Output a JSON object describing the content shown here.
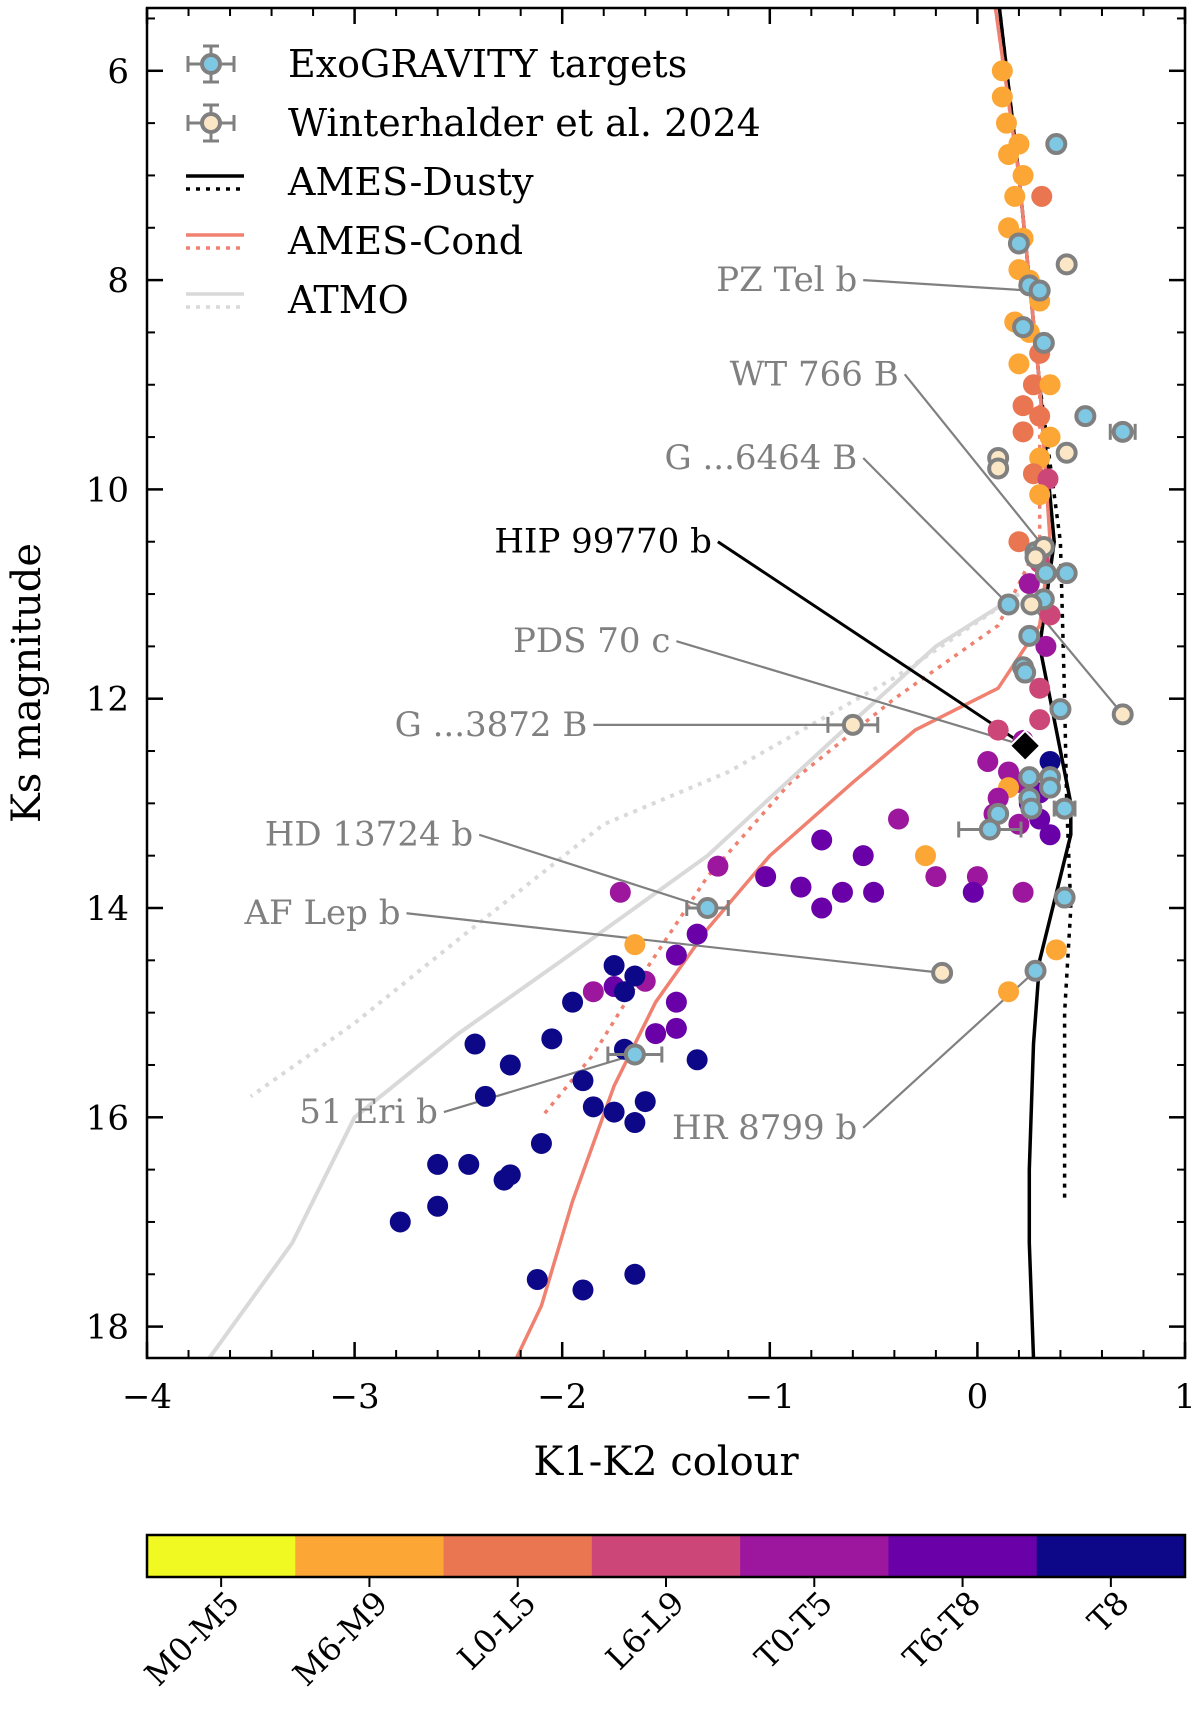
{
  "chart_data": {
    "type": "scatter",
    "xlabel": "K1-K2 colour",
    "ylabel": "Ks magnitude",
    "xlim": [
      -4,
      1
    ],
    "ylim": [
      18.3,
      5.4
    ],
    "xticks": [
      -4,
      -3,
      -2,
      -1,
      0,
      1
    ],
    "xtick_labels": [
      "−4",
      "−3",
      "−2",
      "−1",
      "0",
      "1"
    ],
    "yticks": [
      6,
      8,
      10,
      12,
      14,
      16,
      18
    ],
    "ytick_labels": [
      "6",
      "8",
      "10",
      "12",
      "14",
      "16",
      "18"
    ],
    "legend": {
      "position": "top-left",
      "entries": [
        {
          "label": "ExoGRAVITY targets",
          "kind": "marker",
          "color": "#7ec8e3"
        },
        {
          "label": "Winterhalder et al. 2024",
          "kind": "marker",
          "color": "#fbe7c6"
        },
        {
          "label": "AMES-Dusty",
          "kind": "line",
          "color": "#000000"
        },
        {
          "label": "AMES-Cond",
          "kind": "line",
          "color": "#f08070"
        },
        {
          "label": "ATMO",
          "kind": "line",
          "color": "#d3d3d3"
        }
      ]
    },
    "colorbar": {
      "categories": [
        "M0-M5",
        "M6-M9",
        "L0-L5",
        "L6-L9",
        "T0-T5",
        "T6-T8",
        "T8"
      ],
      "colors": [
        "#f0f921",
        "#fca636",
        "#e97651",
        "#cc4778",
        "#9c179e",
        "#6a00a8",
        "#0d0887"
      ]
    },
    "models": [
      {
        "name": "AMES-Dusty",
        "style": "solid",
        "color": "#000000",
        "points": [
          [
            0.1,
            5.3
          ],
          [
            0.2,
            7
          ],
          [
            0.3,
            9
          ],
          [
            0.37,
            10.5
          ],
          [
            0.3,
            11.5
          ],
          [
            0.35,
            12
          ],
          [
            0.45,
            13
          ],
          [
            0.45,
            13.3
          ],
          [
            0.3,
            14.5
          ],
          [
            0.27,
            15.3
          ],
          [
            0.25,
            16.5
          ],
          [
            0.25,
            17.2
          ],
          [
            0.27,
            18.3
          ]
        ]
      },
      {
        "name": "AMES-Dusty",
        "style": "dotted",
        "color": "#000000",
        "points": [
          [
            0.1,
            5.3
          ],
          [
            0.2,
            7
          ],
          [
            0.3,
            9
          ],
          [
            0.4,
            10.5
          ],
          [
            0.42,
            12
          ],
          [
            0.43,
            13
          ],
          [
            0.45,
            14
          ],
          [
            0.42,
            15
          ],
          [
            0.42,
            16
          ],
          [
            0.42,
            16.8
          ]
        ]
      },
      {
        "name": "AMES-Cond",
        "style": "solid",
        "color": "#f08070",
        "points": [
          [
            0.08,
            5.3
          ],
          [
            0.2,
            7
          ],
          [
            0.3,
            9
          ],
          [
            0.35,
            10.5
          ],
          [
            0.3,
            11.3
          ],
          [
            0.1,
            11.9
          ],
          [
            -0.3,
            12.3
          ],
          [
            -0.6,
            12.8
          ],
          [
            -1.0,
            13.5
          ],
          [
            -1.3,
            14.2
          ],
          [
            -1.55,
            14.9
          ],
          [
            -1.75,
            15.7
          ],
          [
            -1.95,
            16.8
          ],
          [
            -2.1,
            17.8
          ],
          [
            -2.22,
            18.3
          ]
        ]
      },
      {
        "name": "AMES-Cond",
        "style": "dotted",
        "color": "#f08070",
        "points": [
          [
            0.08,
            5.3
          ],
          [
            0.2,
            7
          ],
          [
            0.3,
            9
          ],
          [
            0.3,
            10.5
          ],
          [
            0.1,
            11.3
          ],
          [
            -0.4,
            12.0
          ],
          [
            -0.9,
            12.8
          ],
          [
            -1.3,
            13.7
          ],
          [
            -1.6,
            14.6
          ],
          [
            -1.85,
            15.4
          ],
          [
            -2.1,
            16.0
          ]
        ]
      },
      {
        "name": "ATMO",
        "style": "solid",
        "color": "#d9d9d9",
        "points": [
          [
            0.2,
            11.0
          ],
          [
            -0.2,
            11.5
          ],
          [
            -0.7,
            12.4
          ],
          [
            -1.3,
            13.5
          ],
          [
            -2.0,
            14.5
          ],
          [
            -2.5,
            15.2
          ],
          [
            -3.0,
            16.0
          ],
          [
            -3.3,
            17.2
          ],
          [
            -3.7,
            18.3
          ]
        ]
      },
      {
        "name": "ATMO",
        "style": "dotted",
        "color": "#d9d9d9",
        "points": [
          [
            0.2,
            11.0
          ],
          [
            -0.4,
            11.8
          ],
          [
            -1.2,
            12.7
          ],
          [
            -1.8,
            13.2
          ],
          [
            -2.5,
            14.3
          ],
          [
            -3.0,
            15.1
          ],
          [
            -3.5,
            15.8
          ]
        ]
      }
    ],
    "field_objects": [
      {
        "x": 0.12,
        "y": 6.0,
        "sptype": "M6-M9"
      },
      {
        "x": 0.12,
        "y": 6.25,
        "sptype": "M6-M9"
      },
      {
        "x": 0.14,
        "y": 6.5,
        "sptype": "M6-M9"
      },
      {
        "x": 0.2,
        "y": 6.7,
        "sptype": "M6-M9"
      },
      {
        "x": 0.15,
        "y": 6.8,
        "sptype": "M6-M9"
      },
      {
        "x": 0.22,
        "y": 7.0,
        "sptype": "M6-M9"
      },
      {
        "x": 0.18,
        "y": 7.2,
        "sptype": "M6-M9"
      },
      {
        "x": 0.31,
        "y": 7.2,
        "sptype": "L0-L5"
      },
      {
        "x": 0.15,
        "y": 7.5,
        "sptype": "M6-M9"
      },
      {
        "x": 0.22,
        "y": 7.6,
        "sptype": "M6-M9"
      },
      {
        "x": 0.2,
        "y": 7.9,
        "sptype": "M6-M9"
      },
      {
        "x": 0.25,
        "y": 8.0,
        "sptype": "M6-M9"
      },
      {
        "x": 0.3,
        "y": 8.2,
        "sptype": "M6-M9"
      },
      {
        "x": 0.18,
        "y": 8.4,
        "sptype": "M6-M9"
      },
      {
        "x": 0.25,
        "y": 8.5,
        "sptype": "M6-M9"
      },
      {
        "x": 0.3,
        "y": 8.7,
        "sptype": "L0-L5"
      },
      {
        "x": 0.2,
        "y": 8.8,
        "sptype": "M6-M9"
      },
      {
        "x": 0.27,
        "y": 9.0,
        "sptype": "L0-L5"
      },
      {
        "x": 0.35,
        "y": 9.0,
        "sptype": "M6-M9"
      },
      {
        "x": 0.22,
        "y": 9.2,
        "sptype": "L0-L5"
      },
      {
        "x": 0.3,
        "y": 9.3,
        "sptype": "L0-L5"
      },
      {
        "x": 0.22,
        "y": 9.45,
        "sptype": "L0-L5"
      },
      {
        "x": 0.35,
        "y": 9.5,
        "sptype": "M6-M9"
      },
      {
        "x": 0.3,
        "y": 9.7,
        "sptype": "M6-M9"
      },
      {
        "x": 0.27,
        "y": 9.85,
        "sptype": "L0-L5"
      },
      {
        "x": 0.34,
        "y": 9.9,
        "sptype": "L6-L9"
      },
      {
        "x": 0.3,
        "y": 10.05,
        "sptype": "M6-M9"
      },
      {
        "x": 0.2,
        "y": 10.5,
        "sptype": "L0-L5"
      },
      {
        "x": 0.3,
        "y": 10.7,
        "sptype": "L6-L9"
      },
      {
        "x": 0.25,
        "y": 10.9,
        "sptype": "T0-T5"
      },
      {
        "x": 0.35,
        "y": 11.2,
        "sptype": "L6-L9"
      },
      {
        "x": 0.33,
        "y": 11.5,
        "sptype": "T0-T5"
      },
      {
        "x": 0.22,
        "y": 11.7,
        "sptype": "M6-M9"
      },
      {
        "x": 0.3,
        "y": 11.9,
        "sptype": "L6-L9"
      },
      {
        "x": 0.3,
        "y": 12.2,
        "sptype": "L6-L9"
      },
      {
        "x": 0.1,
        "y": 12.3,
        "sptype": "L6-L9"
      },
      {
        "x": 0.22,
        "y": 12.4,
        "sptype": "T0-T5"
      },
      {
        "x": 0.05,
        "y": 12.6,
        "sptype": "T0-T5"
      },
      {
        "x": 0.35,
        "y": 12.6,
        "sptype": "T8"
      },
      {
        "x": 0.15,
        "y": 12.7,
        "sptype": "T0-T5"
      },
      {
        "x": 0.2,
        "y": 12.8,
        "sptype": "T0-T5"
      },
      {
        "x": 0.15,
        "y": 12.85,
        "sptype": "M6-M9"
      },
      {
        "x": 0.3,
        "y": 12.9,
        "sptype": "T6-T8"
      },
      {
        "x": 0.1,
        "y": 12.95,
        "sptype": "T0-T5"
      },
      {
        "x": 0.25,
        "y": 13.0,
        "sptype": "T6-T8"
      },
      {
        "x": 0.08,
        "y": 13.1,
        "sptype": "T0-T5"
      },
      {
        "x": 0.3,
        "y": 13.15,
        "sptype": "T6-T8"
      },
      {
        "x": 0.2,
        "y": 13.2,
        "sptype": "T0-T5"
      },
      {
        "x": -0.38,
        "y": 13.15,
        "sptype": "T0-T5"
      },
      {
        "x": 0.35,
        "y": 13.3,
        "sptype": "T6-T8"
      },
      {
        "x": -0.75,
        "y": 13.35,
        "sptype": "T6-T8"
      },
      {
        "x": -0.55,
        "y": 13.5,
        "sptype": "T6-T8"
      },
      {
        "x": -0.25,
        "y": 13.5,
        "sptype": "M6-M9"
      },
      {
        "x": -1.25,
        "y": 13.6,
        "sptype": "T0-T5"
      },
      {
        "x": -1.02,
        "y": 13.7,
        "sptype": "T6-T8"
      },
      {
        "x": -0.2,
        "y": 13.7,
        "sptype": "T0-T5"
      },
      {
        "x": 0.0,
        "y": 13.7,
        "sptype": "T0-T5"
      },
      {
        "x": -0.85,
        "y": 13.8,
        "sptype": "T6-T8"
      },
      {
        "x": -0.65,
        "y": 13.85,
        "sptype": "T6-T8"
      },
      {
        "x": -0.5,
        "y": 13.85,
        "sptype": "T6-T8"
      },
      {
        "x": -0.02,
        "y": 13.85,
        "sptype": "T6-T8"
      },
      {
        "x": 0.22,
        "y": 13.85,
        "sptype": "T0-T5"
      },
      {
        "x": -1.72,
        "y": 13.85,
        "sptype": "T0-T5"
      },
      {
        "x": -0.75,
        "y": 14.0,
        "sptype": "T6-T8"
      },
      {
        "x": -1.35,
        "y": 14.25,
        "sptype": "T6-T8"
      },
      {
        "x": -1.45,
        "y": 14.45,
        "sptype": "T6-T8"
      },
      {
        "x": -1.65,
        "y": 14.35,
        "sptype": "M6-M9"
      },
      {
        "x": 0.38,
        "y": 14.4,
        "sptype": "M6-M9"
      },
      {
        "x": -1.6,
        "y": 14.7,
        "sptype": "T0-T5"
      },
      {
        "x": -1.75,
        "y": 14.55,
        "sptype": "T8"
      },
      {
        "x": -1.65,
        "y": 14.65,
        "sptype": "T8"
      },
      {
        "x": -1.75,
        "y": 14.75,
        "sptype": "T6-T8"
      },
      {
        "x": -1.85,
        "y": 14.8,
        "sptype": "T0-T5"
      },
      {
        "x": -1.95,
        "y": 14.9,
        "sptype": "T8"
      },
      {
        "x": -1.7,
        "y": 14.8,
        "sptype": "T8"
      },
      {
        "x": -1.45,
        "y": 14.9,
        "sptype": "T6-T8"
      },
      {
        "x": 0.15,
        "y": 14.8,
        "sptype": "M6-M9"
      },
      {
        "x": -2.05,
        "y": 15.25,
        "sptype": "T8"
      },
      {
        "x": -1.55,
        "y": 15.2,
        "sptype": "T6-T8"
      },
      {
        "x": -1.45,
        "y": 15.15,
        "sptype": "T6-T8"
      },
      {
        "x": -2.42,
        "y": 15.3,
        "sptype": "T8"
      },
      {
        "x": -1.35,
        "y": 15.45,
        "sptype": "T8"
      },
      {
        "x": -2.25,
        "y": 15.5,
        "sptype": "T8"
      },
      {
        "x": -1.7,
        "y": 15.35,
        "sptype": "T8"
      },
      {
        "x": -1.9,
        "y": 15.65,
        "sptype": "T8"
      },
      {
        "x": -2.37,
        "y": 15.8,
        "sptype": "T8"
      },
      {
        "x": -1.85,
        "y": 15.9,
        "sptype": "T8"
      },
      {
        "x": -1.6,
        "y": 15.85,
        "sptype": "T8"
      },
      {
        "x": -1.75,
        "y": 15.95,
        "sptype": "T8"
      },
      {
        "x": -1.65,
        "y": 16.05,
        "sptype": "T8"
      },
      {
        "x": -2.1,
        "y": 16.25,
        "sptype": "T8"
      },
      {
        "x": -2.6,
        "y": 16.45,
        "sptype": "T8"
      },
      {
        "x": -2.45,
        "y": 16.45,
        "sptype": "T8"
      },
      {
        "x": -2.25,
        "y": 16.55,
        "sptype": "T8"
      },
      {
        "x": -2.28,
        "y": 16.6,
        "sptype": "T8"
      },
      {
        "x": -2.6,
        "y": 16.85,
        "sptype": "T8"
      },
      {
        "x": -2.78,
        "y": 17.0,
        "sptype": "T8"
      },
      {
        "x": -2.12,
        "y": 17.55,
        "sptype": "T8"
      },
      {
        "x": -1.9,
        "y": 17.65,
        "sptype": "T8"
      },
      {
        "x": -1.65,
        "y": 17.5,
        "sptype": "T8"
      }
    ],
    "exogravity_targets": [
      {
        "x": 0.38,
        "y": 6.7,
        "xerr": 0
      },
      {
        "x": 0.2,
        "y": 7.65,
        "xerr": 0
      },
      {
        "x": 0.25,
        "y": 8.05,
        "xerr": 0
      },
      {
        "x": 0.3,
        "y": 8.1,
        "xerr": 0
      },
      {
        "x": 0.22,
        "y": 8.45,
        "xerr": 0
      },
      {
        "x": 0.32,
        "y": 8.6,
        "xerr": 0
      },
      {
        "x": 0.52,
        "y": 9.3,
        "xerr": 0
      },
      {
        "x": 0.7,
        "y": 9.45,
        "xerr": 0.06
      },
      {
        "x": 0.33,
        "y": 10.8,
        "xerr": 0
      },
      {
        "x": 0.43,
        "y": 10.8,
        "xerr": 0
      },
      {
        "x": 0.28,
        "y": 10.6,
        "xerr": 0
      },
      {
        "x": 0.15,
        "y": 11.1,
        "xerr": 0
      },
      {
        "x": 0.32,
        "y": 11.05,
        "xerr": 0
      },
      {
        "x": 0.25,
        "y": 11.4,
        "xerr": 0
      },
      {
        "x": 0.22,
        "y": 11.7,
        "xerr": 0
      },
      {
        "x": 0.23,
        "y": 11.75,
        "xerr": 0
      },
      {
        "x": 0.4,
        "y": 12.1,
        "xerr": 0
      },
      {
        "x": 0.25,
        "y": 12.75,
        "xerr": 0
      },
      {
        "x": 0.35,
        "y": 12.75,
        "xerr": 0
      },
      {
        "x": 0.25,
        "y": 12.95,
        "xerr": 0
      },
      {
        "x": 0.35,
        "y": 12.85,
        "xerr": 0
      },
      {
        "x": 0.42,
        "y": 13.05,
        "xerr": 0.05
      },
      {
        "x": 0.26,
        "y": 13.05,
        "xerr": 0
      },
      {
        "x": 0.1,
        "y": 13.1,
        "xerr": 0
      },
      {
        "x": 0.06,
        "y": 13.25,
        "xerr": 0.15
      },
      {
        "x": 0.42,
        "y": 13.9,
        "xerr": 0
      },
      {
        "x": 0.28,
        "y": 14.6,
        "xerr": 0
      },
      {
        "x": -1.3,
        "y": 14.0,
        "xerr": 0.1
      },
      {
        "x": -1.65,
        "y": 15.4,
        "xerr": 0.13
      }
    ],
    "winterhalder_2024": [
      {
        "x": 0.43,
        "y": 7.85,
        "xerr": 0
      },
      {
        "x": 0.1,
        "y": 9.7,
        "xerr": 0
      },
      {
        "x": 0.1,
        "y": 9.8,
        "xerr": 0
      },
      {
        "x": 0.43,
        "y": 9.65,
        "xerr": 0
      },
      {
        "x": 0.32,
        "y": 10.55,
        "xerr": 0
      },
      {
        "x": 0.28,
        "y": 10.65,
        "xerr": 0
      },
      {
        "x": 0.26,
        "y": 11.1,
        "xerr": 0
      },
      {
        "x": 0.7,
        "y": 12.15,
        "xerr": 0
      },
      {
        "x": -0.6,
        "y": 12.25,
        "xerr": 0.12
      },
      {
        "x": -0.17,
        "y": 14.62,
        "xerr": 0
      }
    ],
    "highlight": {
      "label": "HIP 99770 b",
      "x": 0.23,
      "y": 12.45
    },
    "annotations": [
      {
        "label": "PZ Tel b",
        "tx": -0.55,
        "ty": 8.0,
        "px": 0.25,
        "py": 8.1,
        "highlight": false
      },
      {
        "label": "WT 766 B",
        "tx": -0.35,
        "ty": 8.9,
        "px": 0.32,
        "py": 10.55,
        "highlight": false
      },
      {
        "label": "G ...6464 B",
        "tx": -0.55,
        "ty": 9.7,
        "px": 0.15,
        "py": 11.1,
        "highlight": false
      },
      {
        "label": "HIP 99770 b",
        "tx": -1.25,
        "ty": 10.5,
        "px": 0.23,
        "py": 12.45,
        "highlight": true
      },
      {
        "label": "PDS 70 c",
        "tx": -1.45,
        "ty": 11.45,
        "px": 0.23,
        "py": 12.45,
        "highlight": false
      },
      {
        "label": "G ...3872 B",
        "tx": -1.85,
        "ty": 12.25,
        "px": -0.6,
        "py": 12.25,
        "highlight": false
      },
      {
        "label": "HD 13724 b",
        "tx": -2.4,
        "ty": 13.3,
        "px": -1.3,
        "py": 14.0,
        "highlight": false
      },
      {
        "label": "AF Lep b",
        "tx": -2.75,
        "ty": 14.05,
        "px": -0.17,
        "py": 14.62,
        "highlight": false
      },
      {
        "label": "51 Eri b",
        "tx": -2.57,
        "ty": 15.95,
        "px": -1.65,
        "py": 15.4,
        "highlight": false
      },
      {
        "label": "HR 8799 b",
        "tx": -0.55,
        "ty": 16.1,
        "px": 0.28,
        "py": 14.6,
        "highlight": false
      }
    ],
    "extra_connectors": [
      {
        "from": [
          0.26,
          11.1
        ],
        "to": [
          0.7,
          12.15
        ]
      }
    ]
  }
}
